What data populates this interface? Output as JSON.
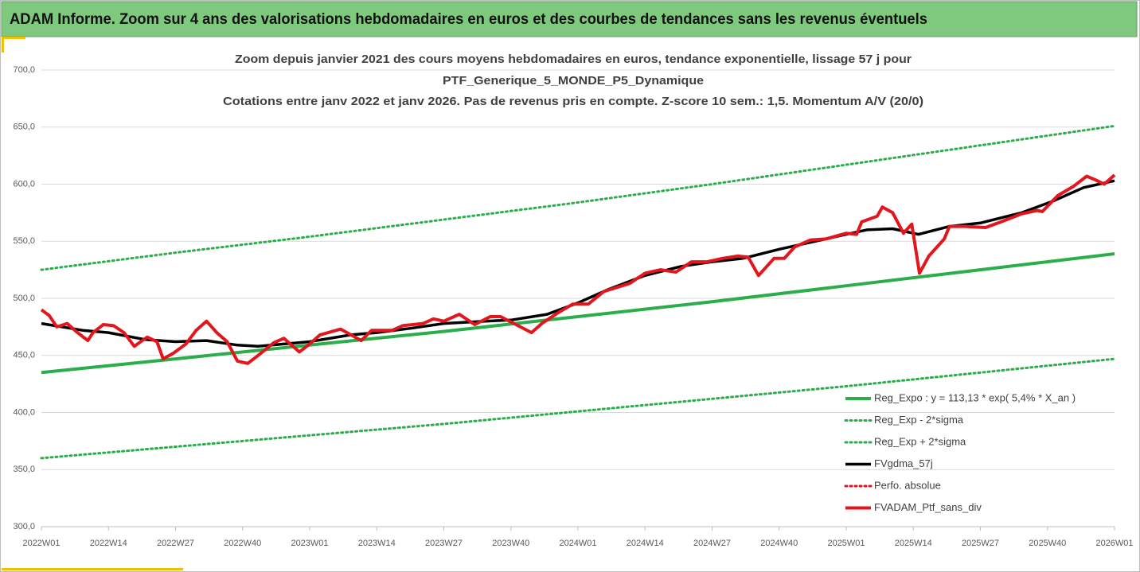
{
  "header": {
    "title": "ADAM Informe. Zoom sur 4 ans des valorisations hebdomadaires en euros et des courbes de tendances sans les revenus éventuels"
  },
  "chart_data": {
    "type": "line",
    "title": [
      "Zoom depuis janvier 2021 des cours moyens hebdomadaires  en euros, tendance exponentielle, lissage 57 j pour",
      "PTF_Generique_5_MONDE_P5_Dynamique",
      "Cotations entre janv 2022 et janv 2026. Pas de revenus pris en compte. Z-score 10 sem.: 1,5. Momentum A/V (20/0)"
    ],
    "xlim": [
      0,
      208
    ],
    "xticks": [
      {
        "value": 0,
        "label": "2022W01"
      },
      {
        "value": 13,
        "label": "2022W14"
      },
      {
        "value": 26,
        "label": "2022W27"
      },
      {
        "value": 39,
        "label": "2022W40"
      },
      {
        "value": 52,
        "label": "2023W01"
      },
      {
        "value": 65,
        "label": "2023W14"
      },
      {
        "value": 78,
        "label": "2023W27"
      },
      {
        "value": 91,
        "label": "2023W40"
      },
      {
        "value": 104,
        "label": "2024W01"
      },
      {
        "value": 117,
        "label": "2024W14"
      },
      {
        "value": 130,
        "label": "2024W27"
      },
      {
        "value": 143,
        "label": "2024W40"
      },
      {
        "value": 156,
        "label": "2025W01"
      },
      {
        "value": 169,
        "label": "2025W14"
      },
      {
        "value": 182,
        "label": "2025W27"
      },
      {
        "value": 195,
        "label": "2025W40"
      },
      {
        "value": 208,
        "label": "2026W01"
      }
    ],
    "ylim": [
      300,
      700
    ],
    "yticks": [
      {
        "value": 300,
        "label": "300,0"
      },
      {
        "value": 350,
        "label": "350,0"
      },
      {
        "value": 400,
        "label": "400,0"
      },
      {
        "value": 450,
        "label": "450,0"
      },
      {
        "value": 500,
        "label": "500,0"
      },
      {
        "value": 550,
        "label": "550,0"
      },
      {
        "value": 600,
        "label": "600,0"
      },
      {
        "value": 650,
        "label": "650,0"
      },
      {
        "value": 700,
        "label": "700,0"
      }
    ],
    "grid": true,
    "legend": "lower right",
    "series": [
      {
        "name": "Reg_Expo : y = 113,13 * exp( 5,4% *  X_an )",
        "color": "#2aad4a",
        "style": "solid",
        "width": 4,
        "x": [
          0,
          26,
          52,
          78,
          104,
          130,
          156,
          182,
          208
        ],
        "values": [
          435,
          447,
          459,
          471,
          484,
          497,
          511,
          525,
          539
        ]
      },
      {
        "name": "Reg_Exp - 2*sigma",
        "color": "#2aad4a",
        "style": "dotted",
        "width": 3,
        "x": [
          0,
          26,
          52,
          78,
          104,
          130,
          156,
          182,
          208
        ],
        "values": [
          360,
          370,
          380,
          390,
          401,
          412,
          423,
          435,
          447
        ]
      },
      {
        "name": "Reg_Exp + 2*sigma",
        "color": "#2aad4a",
        "style": "dotted",
        "width": 3,
        "x": [
          0,
          26,
          52,
          78,
          104,
          130,
          156,
          182,
          208
        ],
        "values": [
          525,
          540,
          554,
          569,
          584,
          600,
          617,
          634,
          651
        ]
      },
      {
        "name": "FVgdma_57j",
        "color": "#000000",
        "style": "solid",
        "width": 3.5,
        "x": [
          0,
          8,
          13,
          20,
          26,
          32,
          38,
          42,
          52,
          60,
          65,
          72,
          78,
          86,
          91,
          98,
          104,
          110,
          117,
          124,
          130,
          136,
          143,
          150,
          156,
          160,
          165,
          170,
          176,
          182,
          190,
          196,
          202,
          208
        ],
        "values": [
          478,
          472,
          470,
          464,
          462,
          463,
          459,
          458,
          462,
          468,
          470,
          474,
          478,
          480,
          481,
          486,
          496,
          508,
          520,
          528,
          532,
          535,
          543,
          550,
          556,
          560,
          561,
          556,
          563,
          566,
          575,
          585,
          597,
          603
        ]
      },
      {
        "name": "Perfo. absolue",
        "color": "#e3161d",
        "style": "dotted",
        "width": 3,
        "x": [],
        "values": []
      },
      {
        "name": "FVADAM_Ptf_sans_div",
        "color": "#e3161d",
        "style": "solid",
        "width": 4,
        "x": [
          0,
          1.5,
          3,
          5,
          7,
          9,
          10,
          12,
          14,
          16,
          18,
          20.5,
          22.4,
          23.6,
          25.6,
          28,
          30,
          32,
          34,
          36,
          38,
          40,
          42,
          45,
          47,
          50,
          52,
          54,
          58,
          60,
          62,
          64,
          68,
          70,
          74,
          76,
          78,
          81,
          84,
          87,
          89,
          92,
          95,
          97,
          100,
          103,
          106,
          109,
          114,
          117,
          120,
          123,
          126,
          129,
          132,
          135,
          137,
          139,
          142,
          144,
          146,
          149,
          152,
          156,
          158,
          159,
          162,
          163,
          165,
          167.1,
          168.7,
          170.2,
          172,
          175,
          176,
          179,
          183,
          186,
          190,
          193,
          194,
          197,
          200,
          202.6,
          204.2,
          206,
          208
        ],
        "values": [
          490,
          485,
          475,
          478,
          470,
          463,
          470,
          477,
          476,
          470,
          458,
          466,
          462,
          447,
          452,
          460,
          472,
          480,
          470,
          462,
          445,
          443,
          450,
          461,
          465,
          453,
          460,
          468,
          473,
          468,
          463,
          472,
          472,
          476,
          478,
          482,
          480,
          486,
          477,
          484,
          484,
          477,
          470,
          478,
          487,
          495,
          495,
          506,
          513,
          522,
          525,
          523,
          532,
          532,
          535,
          537,
          536,
          520,
          535,
          535,
          545,
          551,
          552,
          557,
          556,
          567,
          572,
          580,
          575,
          557,
          565,
          522,
          537,
          552,
          563,
          563,
          562,
          567,
          574,
          577,
          576,
          590,
          598,
          607,
          604,
          600,
          608
        ]
      }
    ]
  }
}
